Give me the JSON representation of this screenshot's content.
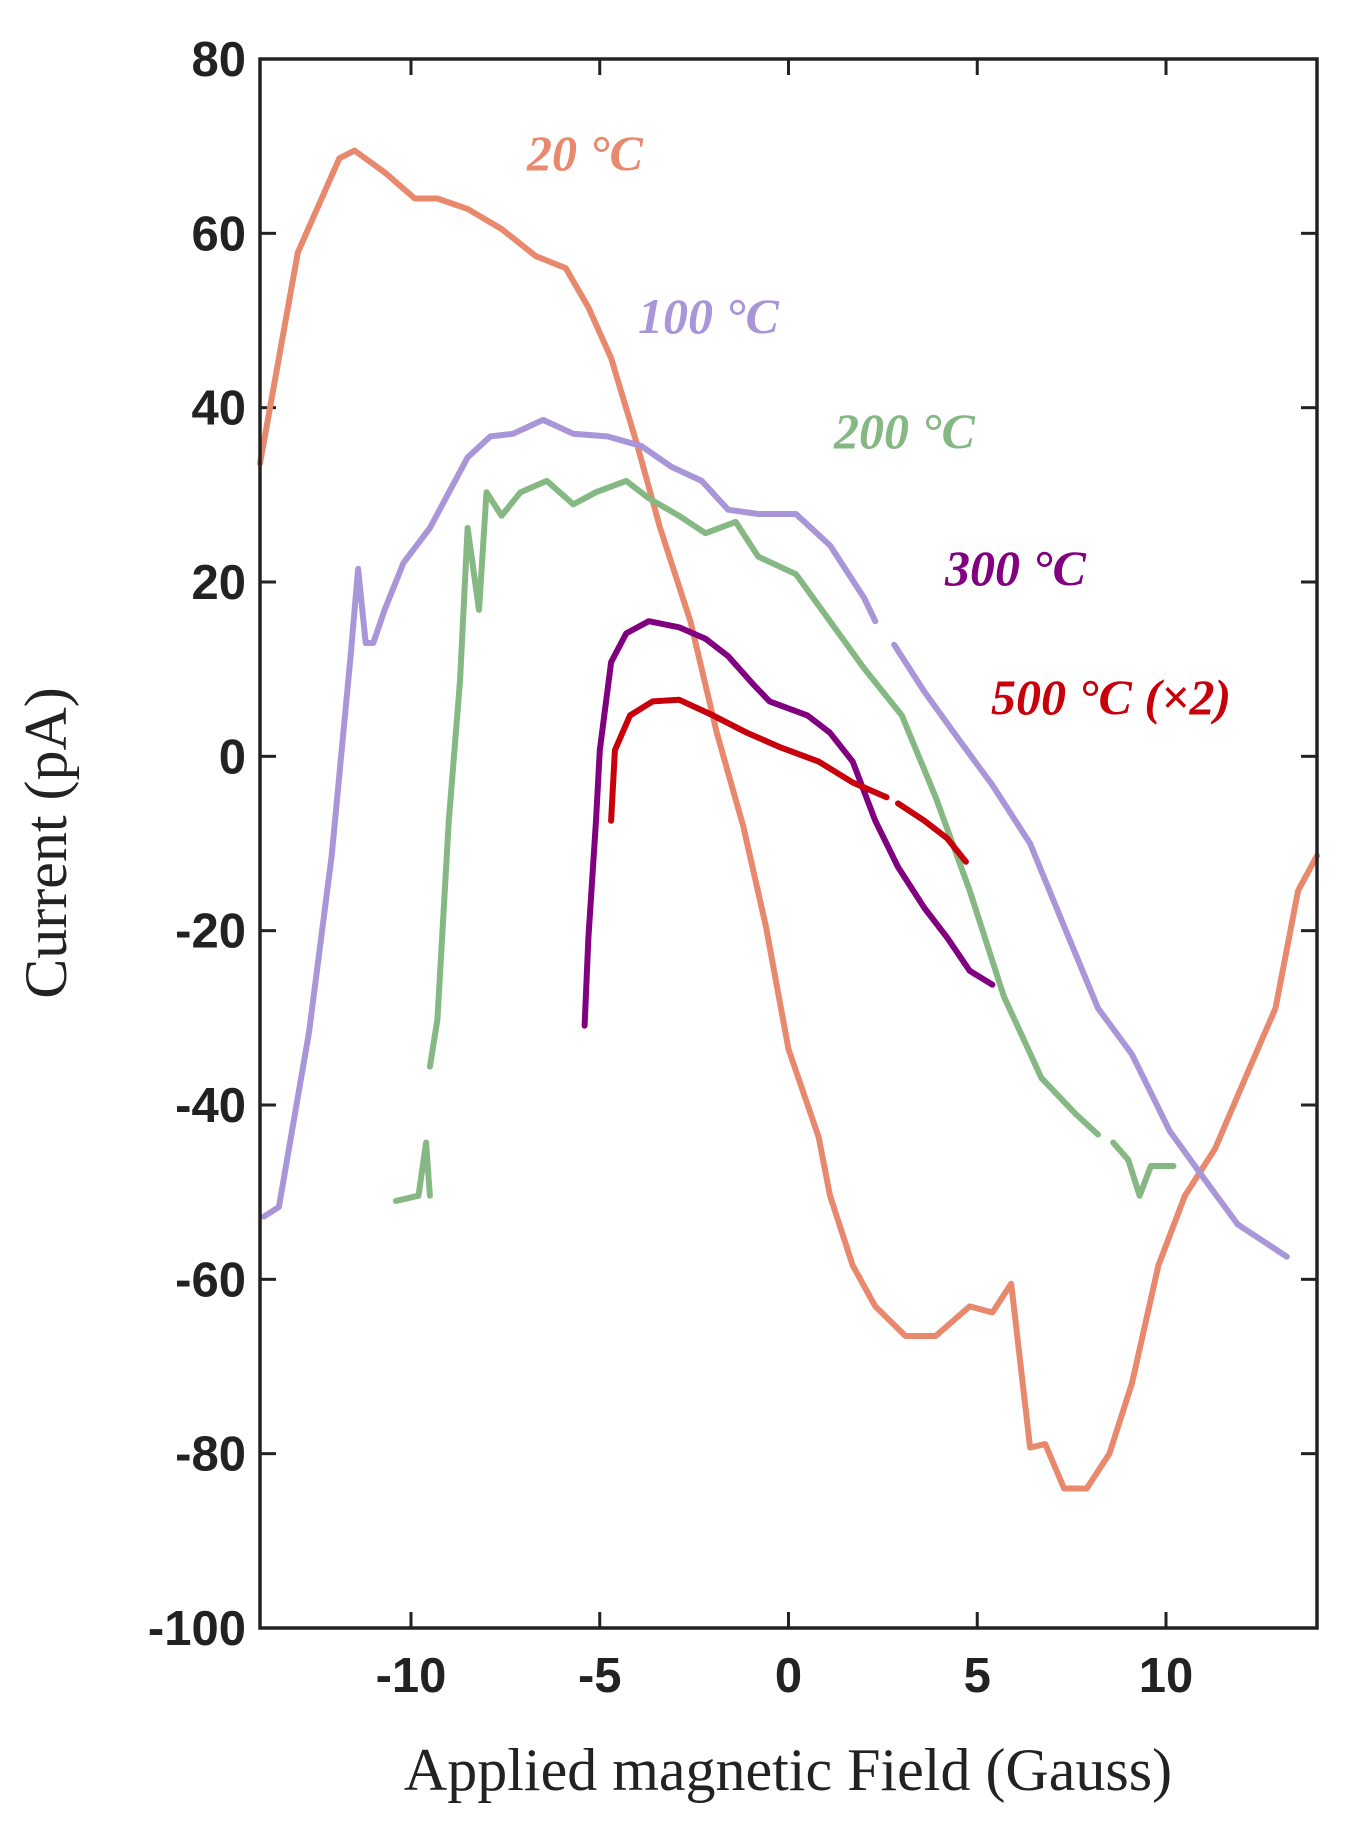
{
  "chart_data": {
    "type": "line",
    "xlabel": "Applied magnetic Field (Gauss)",
    "ylabel": "Current (pA)",
    "xlim": [
      -14,
      14
    ],
    "xticks": [
      -10,
      -5,
      0,
      5,
      10
    ],
    "ylim": [
      -100,
      80
    ],
    "yticks": [
      -100,
      -80,
      -60,
      -40,
      -20,
      0,
      20,
      40,
      60,
      80
    ],
    "series": [
      {
        "name": "20 °C",
        "color": "#e8896e",
        "x": [
          -14,
          -13,
          -11.9,
          -11.5,
          -10.7,
          -9.9,
          -9.3,
          -8.5,
          -7.6,
          -6.7,
          -5.9,
          -5.3,
          -4.7,
          -4,
          -3.4,
          -2.6,
          -1.9,
          -1.2,
          -0.6,
          0,
          0.8,
          1.1,
          1.7,
          2.3,
          3.1,
          3.9,
          4.8,
          5.4,
          5.9,
          6.4,
          6.8,
          7.3,
          7.9,
          8.5,
          9.1,
          9.8,
          10.5,
          11.3,
          12.1,
          12.9,
          13.5,
          14
        ],
        "values": [
          33.6,
          57.8,
          68.6,
          69.5,
          67,
          64,
          64,
          62.8,
          60.5,
          57.4,
          56,
          51.5,
          45.7,
          35.6,
          26.2,
          15.5,
          2.7,
          -8,
          -19.5,
          -33.6,
          -43.7,
          -50.4,
          -58.4,
          -63.1,
          -66.5,
          -66.5,
          -63.1,
          -63.8,
          -60.5,
          -79.3,
          -78.9,
          -84,
          -84,
          -80,
          -71.9,
          -58.4,
          -50.4,
          -45,
          -36.9,
          -28.9,
          -15.4,
          -11.4
        ]
      },
      {
        "name": "100 °C",
        "color": "#a996d8",
        "x": [
          -13.9,
          -13.5,
          -12.7,
          -12.1,
          -11.6,
          -11.4,
          -11.2,
          -11,
          -10.7,
          -10.2,
          -9.5,
          -8.5,
          -7.9,
          -7.3,
          -6.5,
          -5.7,
          -4.8,
          -3.9,
          -3.1,
          -2.3,
          -1.6,
          -0.8,
          0.2,
          1.1,
          2,
          2.3,
          null,
          2.8,
          3.6,
          4.5,
          5.4,
          6.4,
          7.3,
          8.2,
          9.1,
          10.1,
          11,
          11.9,
          13.2
        ],
        "values": [
          -52.8,
          -51.7,
          -31.6,
          -11.4,
          11.5,
          21.5,
          13,
          13,
          16.8,
          22.2,
          26.2,
          34.3,
          36.7,
          37,
          38.6,
          37,
          36.7,
          35.6,
          33.2,
          31.6,
          28.3,
          27.8,
          27.8,
          24.2,
          18.2,
          15.5,
          null,
          12.8,
          7.4,
          2,
          -3.3,
          -10,
          -19.5,
          -28.9,
          -34.2,
          -43,
          -48.4,
          -53.7,
          -57.4
        ]
      },
      {
        "name": "200 °C",
        "color": "#85b883",
        "x": [
          -10.4,
          -9.8,
          -9.6,
          -9.5,
          null,
          -9.5,
          -9.3,
          -9,
          -8.7,
          -8.5,
          -8.2,
          -8,
          -7.6,
          -7.1,
          -6.4,
          -5.7,
          -5.1,
          -4.3,
          -3.7,
          -2.9,
          -2.2,
          -1.4,
          -0.8,
          0.2,
          1.1,
          2,
          3,
          3.9,
          4.8,
          5.7,
          6.7,
          7.6,
          8.2,
          null,
          8.6,
          9,
          9.3,
          9.6,
          10.2
        ],
        "values": [
          -51,
          -50.4,
          -44.3,
          -50.4,
          null,
          -35.6,
          -30.2,
          -7.4,
          8.8,
          26.2,
          16.8,
          30.3,
          27.6,
          30.3,
          31.6,
          28.9,
          30.3,
          31.6,
          29.6,
          27.6,
          25.6,
          26.9,
          22.9,
          20.9,
          15.5,
          10.1,
          4.7,
          -4.7,
          -15.4,
          -27.5,
          -36.9,
          -41,
          -43.4,
          null,
          -44.3,
          -46.3,
          -50.4,
          -47,
          -47
        ]
      },
      {
        "name": "300 °C",
        "color": "#800080",
        "x": [
          -5.4,
          -5.3,
          -5.1,
          -5,
          -4.7,
          -4.3,
          -3.7,
          -2.9,
          -2.2,
          -1.6,
          -0.9,
          -0.5,
          0.5,
          1.1,
          1.7,
          2.3,
          2.9,
          3.6,
          4.2,
          4.8,
          5.4
        ],
        "values": [
          -30.9,
          -20.8,
          -7.4,
          0.7,
          10.8,
          14.1,
          15.5,
          14.8,
          13.5,
          11.5,
          8.1,
          6.3,
          4.7,
          2.7,
          -0.6,
          -7.4,
          -12.7,
          -17.4,
          -20.8,
          -24.6,
          -26.2
        ]
      },
      {
        "name": "500 °C (×2)",
        "color": "#c8000c",
        "x": [
          -4.7,
          -4.6,
          -4.2,
          -3.6,
          -2.9,
          -2,
          -1.1,
          -0.2,
          0.8,
          1.7,
          2.6,
          null,
          2.9,
          3.6,
          4.2,
          4.7
        ],
        "values": [
          -7.4,
          0.7,
          4.7,
          6.3,
          6.5,
          4.7,
          2.7,
          1,
          -0.6,
          -3,
          -4.7,
          null,
          -5.4,
          -7.4,
          -9.4,
          -12.1
        ]
      }
    ]
  }
}
